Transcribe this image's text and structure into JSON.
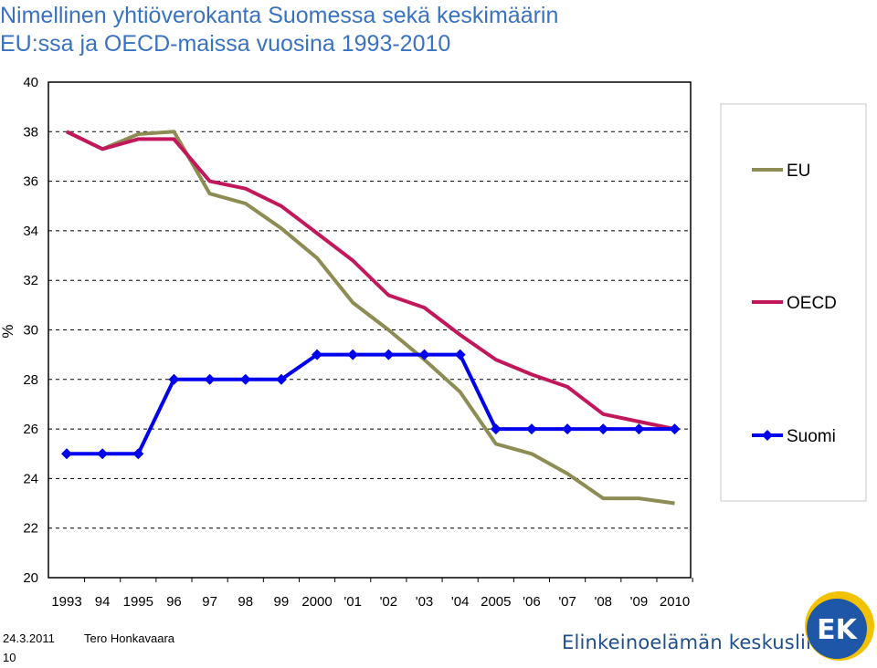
{
  "header": {
    "title_line1": "Nimellinen yhtiöverokanta Suomessa sekä keskimäärin",
    "title_line2": "EU:ssa ja OECD-maissa vuosina 1993-2010"
  },
  "chart_data": {
    "type": "line",
    "ylabel": "%",
    "ylim": [
      20,
      40
    ],
    "yticks": [
      40,
      38,
      36,
      34,
      32,
      30,
      28,
      26,
      24,
      22,
      20
    ],
    "categories": [
      "1993",
      "94",
      "1995",
      "96",
      "97",
      "98",
      "99",
      "2000",
      "'01",
      "'02",
      "'03",
      "'04",
      "2005",
      "'06",
      "'07",
      "'08",
      "'09",
      "2010"
    ],
    "grid": "horizontal dashed",
    "legend_position": "right",
    "series": [
      {
        "name": "EU",
        "color": "#8c8c54",
        "marker": "none",
        "values": [
          38.0,
          37.3,
          37.9,
          38.0,
          35.5,
          35.1,
          34.1,
          32.9,
          31.1,
          30.0,
          28.8,
          27.5,
          25.4,
          25.0,
          24.2,
          23.2,
          23.2,
          23.0
        ]
      },
      {
        "name": "OECD",
        "color": "#c2185b",
        "marker": "none",
        "values": [
          38.0,
          37.3,
          37.7,
          37.7,
          36.0,
          35.7,
          35.0,
          33.9,
          32.8,
          31.4,
          30.9,
          29.8,
          28.8,
          28.2,
          27.7,
          26.6,
          26.3,
          26.0
        ]
      },
      {
        "name": "Suomi",
        "color": "#0000ee",
        "marker": "diamond",
        "values": [
          25.0,
          25.0,
          25.0,
          28.0,
          28.0,
          28.0,
          28.0,
          29.0,
          29.0,
          29.0,
          29.0,
          29.0,
          26.0,
          26.0,
          26.0,
          26.0,
          26.0,
          26.0
        ]
      }
    ]
  },
  "footer": {
    "date": "24.3.2011",
    "author": "Tero Honkavaara",
    "page": "10",
    "organization": "Elinkeinoelämän keskusliitto",
    "logo_text": "EK",
    "logo_colors": {
      "ring": "#f2c200",
      "disc": "#1f57a8",
      "text": "#ffffff"
    }
  }
}
